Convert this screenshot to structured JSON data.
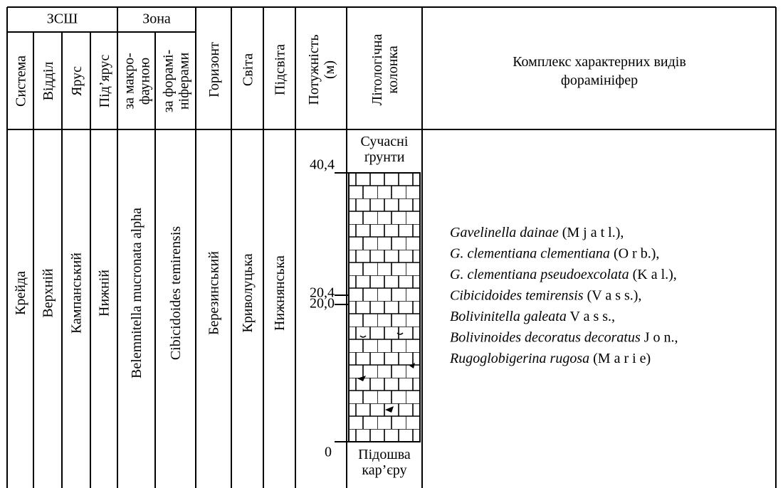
{
  "header": {
    "groups": [
      "ЗСШ",
      "Зона"
    ],
    "columns": [
      {
        "header": [
          "Система"
        ],
        "value": "Крейда"
      },
      {
        "header": [
          "Відділ"
        ],
        "value": "Верхній"
      },
      {
        "header": [
          "Ярус"
        ],
        "value": "Кампанський"
      },
      {
        "header": [
          "Під’ярус"
        ],
        "value": "Нижній"
      },
      {
        "header": [
          "за макро-",
          "фауною"
        ],
        "value": "Belemnitella mucronata alpha"
      },
      {
        "header": [
          "за форамі-",
          "ніферами"
        ],
        "value": "Cibicidoides temirensis"
      },
      {
        "header": [
          "Горизонт"
        ],
        "value": "Березинський"
      },
      {
        "header": [
          "Світа"
        ],
        "value": "Криволуцька"
      },
      {
        "header": [
          "Підсвіта"
        ],
        "value": "Нижнянська"
      },
      {
        "header": [
          "Потужність",
          "(м)"
        ]
      },
      {
        "header": [
          "Літологічна",
          "колонка"
        ]
      }
    ],
    "complex_title": [
      "Комплекс характерних видів",
      "форамініфер"
    ]
  },
  "thickness_marks": [
    "40,4",
    "20,4",
    "20,0",
    "0"
  ],
  "lithology": {
    "top": [
      "Сучасні",
      "ґрунти"
    ],
    "bottom": [
      "Підошва",
      "кар’єру"
    ]
  },
  "species": [
    {
      "name": "Gavelinella dainae",
      "author": " (M j a t l.),"
    },
    {
      "name": "G. clementiana clementiana",
      "author": " (O r b.),"
    },
    {
      "name": "G. clementiana pseudoexcolata",
      "author": " (K a l.),"
    },
    {
      "name": "Cibicidoides temirensis",
      "author": " (V a s s.),"
    },
    {
      "name": "Bolivinitella galeata",
      "author": " V a s s.,"
    },
    {
      "name": "Bolivinoides decoratus decoratus",
      "author": " J o n.,"
    },
    {
      "name": "Rugoglobigerina rugosa",
      "author": " (M a r i e)"
    }
  ]
}
